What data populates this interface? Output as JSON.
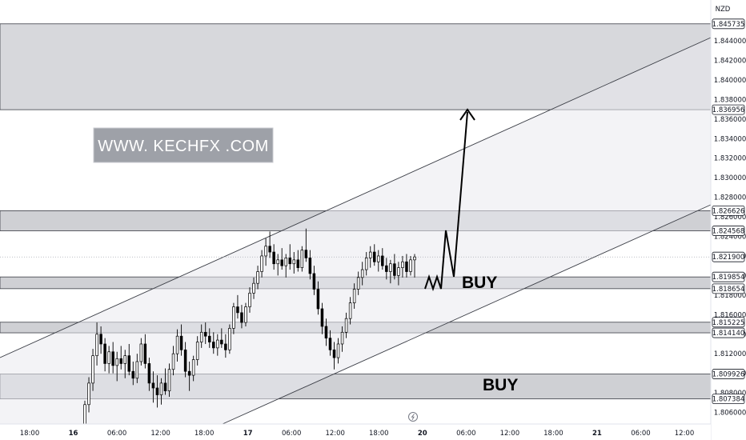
{
  "currency": "NZD",
  "watermark": "WWW. KECHFX .COM",
  "buy_labels": [
    "BUY",
    "BUY"
  ],
  "chart_data": {
    "type": "candlestick",
    "title": "",
    "ylim": [
      1.8045,
      1.8488
    ],
    "yticks": [
      1.806,
      1.808,
      1.81,
      1.812,
      1.814,
      1.816,
      1.818,
      1.82,
      1.822,
      1.824,
      1.826,
      1.828,
      1.83,
      1.832,
      1.834,
      1.836,
      1.838,
      1.84,
      1.842,
      1.844
    ],
    "ytick_labels": [
      "1.806000",
      "1.808000",
      "1.810000",
      "1.812000",
      "1.814000",
      "1.816000",
      "1.818000",
      "1.820000",
      "1.822000",
      "1.824000",
      "1.826000",
      "1.828000",
      "1.830000",
      "1.832000",
      "1.834000",
      "1.836000",
      "1.838000",
      "1.840000",
      "1.842000",
      "1.844000"
    ],
    "x_labels": [
      "18:00",
      "16",
      "06:00",
      "12:00",
      "18:00",
      "17",
      "06:00",
      "12:00",
      "18:00",
      "20",
      "06:00",
      "12:00",
      "18:00",
      "21",
      "06:00",
      "12:00"
    ],
    "price_badges": [
      {
        "value": 1.845735,
        "label": "1.845735"
      },
      {
        "value": 1.836956,
        "label": "1.836956"
      },
      {
        "value": 1.826626,
        "label": "1.826626"
      },
      {
        "value": 1.824568,
        "label": "1.824568"
      },
      {
        "value": 1.8219,
        "label": "1.821900"
      },
      {
        "value": 1.819854,
        "label": "1.819854"
      },
      {
        "value": 1.818654,
        "label": "1.818654"
      },
      {
        "value": 1.815225,
        "label": "1.815225"
      },
      {
        "value": 1.81414,
        "label": "1.814140"
      },
      {
        "value": 1.809926,
        "label": "1.809926"
      },
      {
        "value": 1.807384,
        "label": "1.807384"
      }
    ],
    "zones": [
      {
        "top": 1.845735,
        "bottom": 1.836956
      },
      {
        "top": 1.826626,
        "bottom": 1.824568
      },
      {
        "top": 1.819854,
        "bottom": 1.818654
      },
      {
        "top": 1.815225,
        "bottom": 1.81414
      },
      {
        "top": 1.809926,
        "bottom": 1.807384
      }
    ],
    "last_price": 1.8219,
    "candles": [
      [
        1.8048,
        1.8072,
        1.8045,
        1.8068
      ],
      [
        1.8068,
        1.8096,
        1.806,
        1.809
      ],
      [
        1.809,
        1.8125,
        1.8082,
        1.8118
      ],
      [
        1.8118,
        1.8152,
        1.8108,
        1.814
      ],
      [
        1.814,
        1.8148,
        1.812,
        1.813
      ],
      [
        1.813,
        1.8136,
        1.8102,
        1.811
      ],
      [
        1.811,
        1.8128,
        1.81,
        1.8122
      ],
      [
        1.8122,
        1.8132,
        1.81,
        1.8108
      ],
      [
        1.8108,
        1.8122,
        1.8092,
        1.8115
      ],
      [
        1.8115,
        1.8128,
        1.8104,
        1.811
      ],
      [
        1.811,
        1.8124,
        1.8095,
        1.8118
      ],
      [
        1.8118,
        1.813,
        1.8098,
        1.8102
      ],
      [
        1.8102,
        1.8112,
        1.8088,
        1.8095
      ],
      [
        1.8095,
        1.812,
        1.809,
        1.8112
      ],
      [
        1.8112,
        1.8136,
        1.8108,
        1.813
      ],
      [
        1.813,
        1.814,
        1.8105,
        1.811
      ],
      [
        1.811,
        1.8116,
        1.8082,
        1.809
      ],
      [
        1.809,
        1.8102,
        1.807,
        1.8085
      ],
      [
        1.8085,
        1.8098,
        1.8065,
        1.8078
      ],
      [
        1.8078,
        1.8095,
        1.8068,
        1.809
      ],
      [
        1.809,
        1.8105,
        1.8078,
        1.8082
      ],
      [
        1.8082,
        1.811,
        1.8076,
        1.8104
      ],
      [
        1.8104,
        1.8128,
        1.8098,
        1.812
      ],
      [
        1.812,
        1.8145,
        1.8112,
        1.8138
      ],
      [
        1.8138,
        1.815,
        1.8118,
        1.8124
      ],
      [
        1.8124,
        1.8132,
        1.8096,
        1.8102
      ],
      [
        1.8102,
        1.8112,
        1.8082,
        1.8098
      ],
      [
        1.8098,
        1.8118,
        1.8092,
        1.8114
      ],
      [
        1.8114,
        1.8138,
        1.8108,
        1.8132
      ],
      [
        1.8132,
        1.815,
        1.8126,
        1.8142
      ],
      [
        1.8142,
        1.8152,
        1.813,
        1.8138
      ],
      [
        1.8138,
        1.8146,
        1.8126,
        1.8132
      ],
      [
        1.8132,
        1.8142,
        1.812,
        1.8126
      ],
      [
        1.8126,
        1.814,
        1.8118,
        1.8134
      ],
      [
        1.8134,
        1.8146,
        1.8126,
        1.813
      ],
      [
        1.813,
        1.814,
        1.8116,
        1.8124
      ],
      [
        1.8124,
        1.815,
        1.812,
        1.8146
      ],
      [
        1.8146,
        1.8172,
        1.814,
        1.8168
      ],
      [
        1.8168,
        1.818,
        1.8156,
        1.8162
      ],
      [
        1.8162,
        1.817,
        1.8146,
        1.8152
      ],
      [
        1.8152,
        1.8172,
        1.8148,
        1.8168
      ],
      [
        1.8168,
        1.8188,
        1.8162,
        1.8182
      ],
      [
        1.8182,
        1.8198,
        1.8176,
        1.8192
      ],
      [
        1.8192,
        1.821,
        1.8186,
        1.8204
      ],
      [
        1.8204,
        1.8226,
        1.8198,
        1.822
      ],
      [
        1.822,
        1.8238,
        1.821,
        1.823
      ],
      [
        1.823,
        1.8245,
        1.8218,
        1.8224
      ],
      [
        1.8224,
        1.8232,
        1.8206,
        1.8212
      ],
      [
        1.8212,
        1.8222,
        1.82,
        1.8216
      ],
      [
        1.8216,
        1.8228,
        1.8206,
        1.821
      ],
      [
        1.821,
        1.8222,
        1.8198,
        1.8218
      ],
      [
        1.8218,
        1.8232,
        1.8206,
        1.8212
      ],
      [
        1.8212,
        1.8224,
        1.8202,
        1.8216
      ],
      [
        1.8216,
        1.8226,
        1.8204,
        1.8208
      ],
      [
        1.8208,
        1.823,
        1.8204,
        1.8226
      ],
      [
        1.8226,
        1.8248,
        1.8214,
        1.8218
      ],
      [
        1.8218,
        1.8226,
        1.8196,
        1.8202
      ],
      [
        1.8202,
        1.821,
        1.818,
        1.8186
      ],
      [
        1.8186,
        1.8194,
        1.816,
        1.8166
      ],
      [
        1.8166,
        1.8172,
        1.814,
        1.8148
      ],
      [
        1.8148,
        1.8156,
        1.8128,
        1.8136
      ],
      [
        1.8136,
        1.8144,
        1.8118,
        1.8124
      ],
      [
        1.8124,
        1.8132,
        1.8104,
        1.8116
      ],
      [
        1.8116,
        1.8136,
        1.811,
        1.813
      ],
      [
        1.813,
        1.8148,
        1.8122,
        1.8142
      ],
      [
        1.8142,
        1.8162,
        1.8136,
        1.8156
      ],
      [
        1.8156,
        1.8178,
        1.815,
        1.8172
      ],
      [
        1.8172,
        1.8192,
        1.8166,
        1.8186
      ],
      [
        1.8186,
        1.8204,
        1.818,
        1.8198
      ],
      [
        1.8198,
        1.8214,
        1.819,
        1.8206
      ],
      [
        1.8206,
        1.8224,
        1.82,
        1.8218
      ],
      [
        1.8218,
        1.823,
        1.8208,
        1.8224
      ],
      [
        1.8224,
        1.8232,
        1.821,
        1.8214
      ],
      [
        1.8214,
        1.8226,
        1.8204,
        1.822
      ],
      [
        1.822,
        1.8228,
        1.8206,
        1.821
      ],
      [
        1.821,
        1.8218,
        1.8196,
        1.8204
      ],
      [
        1.8204,
        1.8216,
        1.8192,
        1.8212
      ],
      [
        1.8212,
        1.8222,
        1.8196,
        1.82
      ],
      [
        1.82,
        1.8214,
        1.819,
        1.8208
      ],
      [
        1.8208,
        1.822,
        1.8198,
        1.8214
      ],
      [
        1.8214,
        1.8222,
        1.8198,
        1.8204
      ],
      [
        1.8204,
        1.822,
        1.82,
        1.8216
      ],
      [
        1.8216,
        1.8222,
        1.8198,
        1.8219
      ]
    ]
  }
}
